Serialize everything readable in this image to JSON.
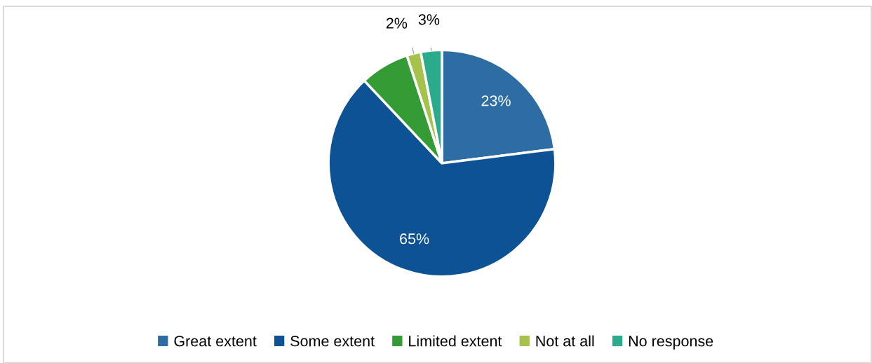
{
  "chart_data": {
    "type": "pie",
    "categories": [
      "Great extent",
      "Some extent",
      "Limited extent",
      "Not at all",
      "No response"
    ],
    "values": [
      23,
      65,
      7,
      2,
      3
    ],
    "colors": [
      "#2e6da4",
      "#0d5294",
      "#359b35",
      "#a5c24a",
      "#2aab8c"
    ],
    "value_labels": [
      "23%",
      "65%",
      null,
      "2%",
      "3%"
    ],
    "legend": "bottom"
  }
}
